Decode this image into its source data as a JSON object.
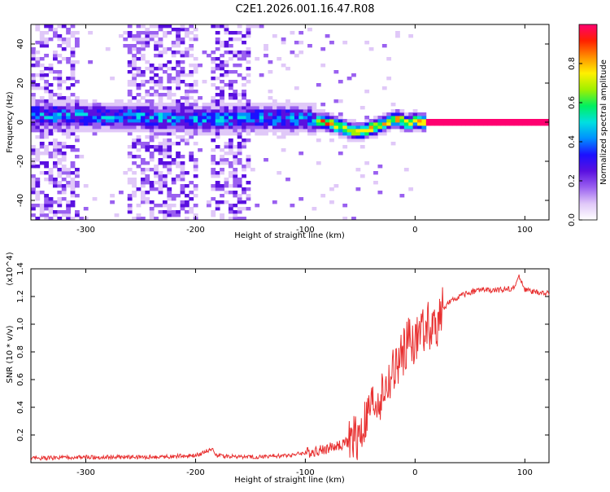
{
  "title": "C2E1.2026.001.16.47.R08",
  "chart_data": [
    {
      "type": "heatmap",
      "xlabel": "Height of straight line (km)",
      "ylabel": "Frequency (Hz)",
      "xlim": [
        -350,
        122
      ],
      "ylim": [
        -50,
        50
      ],
      "xticks": [
        -300,
        -200,
        -100,
        0,
        100
      ],
      "yticks": [
        -40,
        -20,
        0,
        20,
        40
      ],
      "colorbar": {
        "label": "Normalized spectral amplitude",
        "range": [
          0,
          1
        ],
        "ticks": [
          "0.0",
          "0.2",
          "0.4",
          "0.6",
          "0.8"
        ],
        "tick_values": [
          0.0,
          0.2,
          0.4,
          0.6,
          0.8
        ],
        "colormap": [
          "#ffffff",
          "#e0c8f8",
          "#9a60f0",
          "#5a10e0",
          "#1c10ff",
          "#0090ff",
          "#00e0e0",
          "#00f060",
          "#a0f000",
          "#fff000",
          "#ff9000",
          "#ff2000",
          "#ff0070"
        ]
      },
      "ridge": {
        "x": [
          -345,
          -300,
          -250,
          -200,
          -150,
          -100,
          -80,
          -60,
          -50,
          -40,
          -30,
          -20,
          -15,
          -10,
          -5,
          0,
          5,
          20,
          60,
          100,
          122
        ],
        "y": [
          4,
          3,
          3,
          1.5,
          2,
          2,
          0,
          -4,
          -5,
          -3,
          -1,
          1,
          2,
          0,
          -1,
          1,
          0,
          0,
          0,
          0,
          0
        ]
      },
      "noise_bands_x": [
        [
          -350,
          -305
        ],
        [
          -260,
          -200
        ],
        [
          -185,
          -150
        ]
      ]
    },
    {
      "type": "line",
      "xlabel": "Height of straight line (km)",
      "ylabel": "SNR (10 * v/v)",
      "y_multiplier": "(x10^4)",
      "xlim": [
        -350,
        122
      ],
      "ylim": [
        0,
        1.4
      ],
      "xticks": [
        -300,
        -200,
        -100,
        0,
        100
      ],
      "yticks": [
        0.2,
        0.4,
        0.6,
        0.8,
        1.0,
        1.2,
        1.4
      ],
      "series": [
        {
          "color": "#e83030",
          "x": [
            -350,
            -300,
            -250,
            -200,
            -185,
            -180,
            -150,
            -120,
            -100,
            -80,
            -60,
            -50,
            -45,
            -40,
            -35,
            -30,
            -25,
            -20,
            -15,
            -10,
            -5,
            0,
            5,
            10,
            15,
            20,
            25,
            30,
            40,
            50,
            60,
            70,
            80,
            90,
            95,
            100,
            110,
            122
          ],
          "values": [
            0.03,
            0.04,
            0.04,
            0.05,
            0.1,
            0.05,
            0.04,
            0.05,
            0.07,
            0.1,
            0.15,
            0.2,
            0.3,
            0.4,
            0.45,
            0.5,
            0.55,
            0.65,
            0.7,
            0.8,
            0.9,
            0.85,
            0.95,
            1.0,
            0.95,
            1.0,
            1.1,
            1.15,
            1.2,
            1.23,
            1.25,
            1.24,
            1.25,
            1.26,
            1.35,
            1.25,
            1.23,
            1.22
          ]
        }
      ]
    }
  ]
}
